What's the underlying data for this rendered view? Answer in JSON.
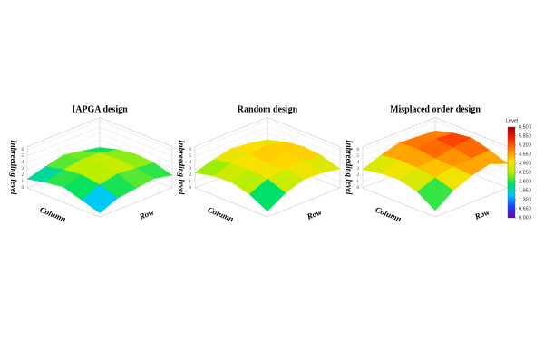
{
  "chart_data": [
    {
      "type": "surface",
      "title": "IAPGA design",
      "xlabel": "Column",
      "ylabel": "Row",
      "zlabel": "Inbreeding level",
      "zlim": [
        0,
        6.5
      ],
      "zticks": [
        0,
        1,
        2,
        3,
        4,
        5,
        6
      ],
      "z": [
        [
          1.8,
          2.6,
          3.0,
          2.8,
          2.0
        ],
        [
          2.4,
          3.2,
          3.4,
          3.1,
          2.6
        ],
        [
          2.9,
          3.3,
          3.9,
          3.4,
          2.2
        ],
        [
          2.2,
          2.9,
          3.2,
          2.8,
          1.8
        ],
        [
          1.4,
          2.0,
          2.4,
          1.5,
          0.6
        ]
      ]
    },
    {
      "type": "surface",
      "title": "Random design",
      "xlabel": "Column",
      "ylabel": "Row",
      "zlabel": "Inbreeding level",
      "zlim": [
        0,
        6.5
      ],
      "zticks": [
        0,
        1,
        2,
        3,
        4,
        5,
        6
      ],
      "z": [
        [
          3.0,
          3.8,
          4.2,
          3.9,
          3.0
        ],
        [
          3.6,
          4.5,
          4.4,
          4.3,
          3.5
        ],
        [
          3.9,
          4.2,
          3.8,
          4.1,
          3.6
        ],
        [
          3.3,
          3.9,
          4.0,
          3.7,
          2.6
        ],
        [
          2.4,
          3.0,
          3.2,
          2.4,
          0.9
        ]
      ]
    },
    {
      "type": "surface",
      "title": "Misplaced order design",
      "xlabel": "Column",
      "ylabel": "Row",
      "zlabel": "Inbreeding level",
      "zlim": [
        0,
        6.5
      ],
      "zticks": [
        0,
        1,
        2,
        3,
        4,
        5,
        6
      ],
      "z": [
        [
          4.4,
          5.2,
          5.6,
          4.8,
          3.8
        ],
        [
          4.6,
          5.4,
          5.2,
          4.6,
          4.9
        ],
        [
          4.8,
          5.0,
          4.6,
          4.5,
          4.2
        ],
        [
          4.0,
          4.4,
          4.3,
          3.9,
          3.0
        ],
        [
          2.9,
          3.4,
          3.6,
          2.8,
          1.0
        ]
      ]
    }
  ],
  "colorbar": {
    "title": "Level",
    "lim": [
      0,
      6.5
    ],
    "colors": [
      "#5a0a9c",
      "#1e3cff",
      "#00c8ff",
      "#00e060",
      "#b4f000",
      "#ffe000",
      "#ff8000",
      "#ff1a00",
      "#a00000"
    ],
    "ticks": [
      {
        "value": 0,
        "label": "0.000"
      },
      {
        "value": 0.65,
        "label": "0.650"
      },
      {
        "value": 1.3,
        "label": "1.300"
      },
      {
        "value": 1.95,
        "label": "1.950"
      },
      {
        "value": 2.6,
        "label": "2.600"
      },
      {
        "value": 3.25,
        "label": "3.250"
      },
      {
        "value": 3.9,
        "label": "3.900"
      },
      {
        "value": 4.55,
        "label": "4.550"
      },
      {
        "value": 5.2,
        "label": "5.200"
      },
      {
        "value": 5.85,
        "label": "5.850"
      },
      {
        "value": 6.5,
        "label": "6.500"
      }
    ]
  }
}
